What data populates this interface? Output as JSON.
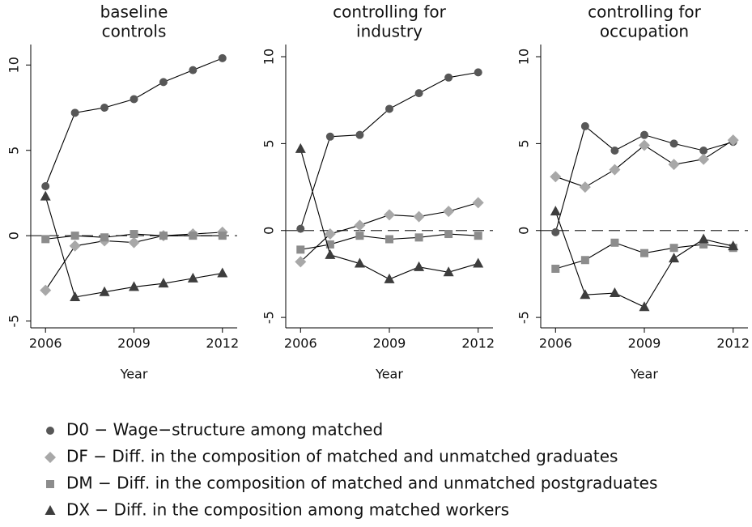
{
  "chart_data": [
    {
      "type": "line",
      "title": [
        "baseline",
        "controls"
      ],
      "xlabel": "Year",
      "x": [
        2006,
        2007,
        2008,
        2009,
        2010,
        2011,
        2012
      ],
      "xlim": [
        2005.5,
        2012.5
      ],
      "xticks": [
        2006,
        2009,
        2012
      ],
      "ylim": [
        -5.4,
        11.2
      ],
      "yticks": [
        -5,
        0,
        5,
        10
      ],
      "reference_line": 0,
      "series": [
        {
          "name": "D0 − Wage−structure among matched",
          "color": "#575757",
          "marker": "circle",
          "values": [
            2.9,
            7.2,
            7.5,
            8.0,
            9.0,
            9.7,
            10.4
          ]
        },
        {
          "name": "DF − Diff. in the composition of matched and unmatched graduates",
          "color": "#a8a8a8",
          "marker": "diamond",
          "values": [
            -3.2,
            -0.6,
            -0.3,
            -0.4,
            0.0,
            0.1,
            0.2
          ]
        },
        {
          "name": "DM − Diff. in the composition of matched and unmatched postgraduates",
          "color": "#8c8c8c",
          "marker": "square",
          "values": [
            -0.2,
            0.0,
            -0.1,
            0.1,
            0.0,
            0.0,
            0.0
          ]
        },
        {
          "name": "DX − Diff. in the composition among matched workers",
          "color": "#3d3d3d",
          "marker": "triangle",
          "values": [
            2.3,
            -3.6,
            -3.3,
            -3.0,
            -2.8,
            -2.5,
            -2.2
          ]
        }
      ]
    },
    {
      "type": "line",
      "title": [
        "controlling for",
        "industry"
      ],
      "xlabel": "Year",
      "x": [
        2006,
        2007,
        2008,
        2009,
        2010,
        2011,
        2012
      ],
      "xlim": [
        2005.5,
        2012.5
      ],
      "xticks": [
        2006,
        2009,
        2012
      ],
      "ylim": [
        -5.6,
        10.7
      ],
      "yticks": [
        -5,
        0,
        5,
        10
      ],
      "reference_line": 0,
      "series": [
        {
          "name": "D0 − Wage−structure among matched",
          "color": "#575757",
          "marker": "circle",
          "values": [
            0.1,
            5.4,
            5.5,
            7.0,
            7.9,
            8.8,
            9.1
          ]
        },
        {
          "name": "DF − Diff. in the composition of matched and unmatched graduates",
          "color": "#a8a8a8",
          "marker": "diamond",
          "values": [
            -1.8,
            -0.2,
            0.3,
            0.9,
            0.8,
            1.1,
            1.6
          ]
        },
        {
          "name": "DM − Diff. in the composition of matched and unmatched postgraduates",
          "color": "#8c8c8c",
          "marker": "square",
          "values": [
            -1.1,
            -0.8,
            -0.3,
            -0.5,
            -0.4,
            -0.2,
            -0.3
          ]
        },
        {
          "name": "DX − Diff. in the composition among matched workers",
          "color": "#3d3d3d",
          "marker": "triangle",
          "values": [
            4.7,
            -1.4,
            -1.9,
            -2.8,
            -2.1,
            -2.4,
            -1.9
          ]
        }
      ]
    },
    {
      "type": "line",
      "title": [
        "controlling for",
        "occupation"
      ],
      "xlabel": "Year",
      "x": [
        2006,
        2007,
        2008,
        2009,
        2010,
        2011,
        2012
      ],
      "xlim": [
        2005.5,
        2012.5
      ],
      "xticks": [
        2006,
        2009,
        2012
      ],
      "ylim": [
        -5.6,
        10.7
      ],
      "yticks": [
        -5,
        0,
        5,
        10
      ],
      "reference_line": 0,
      "series": [
        {
          "name": "D0 − Wage−structure among matched",
          "color": "#575757",
          "marker": "circle",
          "values": [
            -0.1,
            6.0,
            4.6,
            5.5,
            5.0,
            4.6,
            5.1
          ]
        },
        {
          "name": "DF − Diff. in the composition of matched and unmatched graduates",
          "color": "#a8a8a8",
          "marker": "diamond",
          "values": [
            3.1,
            2.5,
            3.5,
            4.9,
            3.8,
            4.1,
            5.2
          ]
        },
        {
          "name": "DM − Diff. in the composition of matched and unmatched postgraduates",
          "color": "#8c8c8c",
          "marker": "square",
          "values": [
            -2.2,
            -1.7,
            -0.7,
            -1.3,
            -1.0,
            -0.8,
            -1.0
          ]
        },
        {
          "name": "DX − Diff. in the composition among matched workers",
          "color": "#3d3d3d",
          "marker": "triangle",
          "values": [
            1.1,
            -3.7,
            -3.6,
            -4.4,
            -1.6,
            -0.5,
            -0.9
          ]
        }
      ]
    }
  ]
}
